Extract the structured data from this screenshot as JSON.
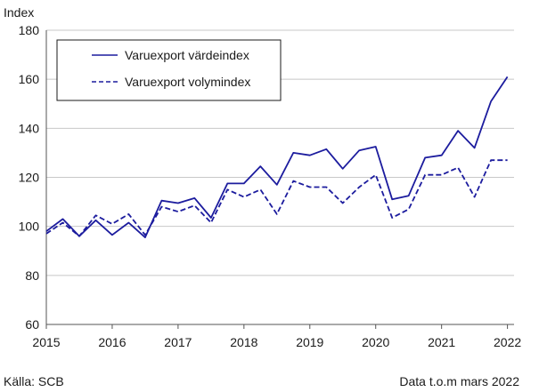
{
  "chart_data": {
    "type": "line",
    "ylabel": "Index",
    "ylim": [
      60,
      180
    ],
    "yticks": [
      60,
      80,
      100,
      120,
      140,
      160,
      180
    ],
    "xlim": [
      2015.0,
      2022.1
    ],
    "xticks": [
      "2015",
      "2016",
      "2017",
      "2018",
      "2019",
      "2020",
      "2021",
      "2022"
    ],
    "grid": "horizontal",
    "legend_position": "top-left",
    "colors": {
      "line": "#1c1c9e",
      "grid": "#c8c8c8",
      "axis": "#555555"
    },
    "x": [
      2015.0,
      2015.25,
      2015.5,
      2015.75,
      2016.0,
      2016.25,
      2016.5,
      2016.75,
      2017.0,
      2017.25,
      2017.5,
      2017.75,
      2018.0,
      2018.25,
      2018.5,
      2018.75,
      2019.0,
      2019.25,
      2019.5,
      2019.75,
      2020.0,
      2020.25,
      2020.5,
      2020.75,
      2021.0,
      2021.25,
      2021.5,
      2021.75,
      2022.0
    ],
    "series": [
      {
        "name": "Varuexport värdeindex",
        "style": "solid",
        "values": [
          98,
          103,
          96,
          102.5,
          96.5,
          101.5,
          95.5,
          110.5,
          109.5,
          111.5,
          103.5,
          117.5,
          117.5,
          124.5,
          117,
          130,
          129,
          131.5,
          123.5,
          131,
          132.5,
          111,
          112.5,
          128,
          129,
          139,
          132,
          151,
          161
        ]
      },
      {
        "name": "Varuexport volymindex",
        "style": "dashed",
        "values": [
          97,
          101.5,
          96,
          104.5,
          101,
          105,
          96.5,
          108,
          106,
          108.5,
          101.5,
          115,
          112,
          115,
          105,
          118.5,
          116,
          116,
          109.5,
          116,
          121,
          103.5,
          107,
          121,
          121,
          124,
          112,
          127,
          127
        ]
      }
    ]
  },
  "footer": {
    "source": "Källa: SCB",
    "data_note": "Data t.o.m mars 2022"
  }
}
